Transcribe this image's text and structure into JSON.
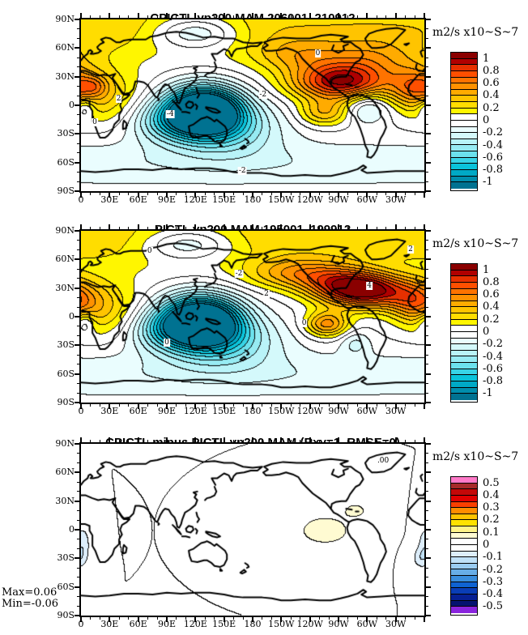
{
  "figure": {
    "kind": "NCL-style filled contour comparison figure, 3 stacked global maps",
    "background": "#ffffff"
  },
  "axes": {
    "x_labels": [
      "0",
      "30E",
      "60E",
      "90E",
      "120E",
      "150E",
      "180",
      "150W",
      "120W",
      "90W",
      "60W",
      "30W"
    ],
    "y_labels": [
      "90N",
      "60N",
      "30N",
      "0",
      "30S",
      "60S",
      "90S"
    ],
    "x_major_step_deg": 30,
    "x_minor_step_deg": 10,
    "y_major_step_deg": 30,
    "y_minor_step_deg": 10
  },
  "chart_data": [
    {
      "type": "heatmap",
      "subtype": "filled_contour_world_map",
      "title": "CPICTL vp200 MAM 206001_210912",
      "units": "m2/s x10~S~7",
      "projection": "equirectangular",
      "lon_range": [
        0,
        360
      ],
      "lat_range": [
        -90,
        90
      ],
      "levels": {
        "min": -1,
        "max": 1,
        "step": 0.1
      },
      "colorbar_tick_labels": [
        "1",
        "0.8",
        "0.6",
        "0.4",
        "0.2",
        "0",
        "-0.2",
        "-0.4",
        "-0.6",
        "-0.8",
        "-1"
      ],
      "palette": [
        "#8a0000",
        "#b00000",
        "#e63000",
        "#ff4f00",
        "#ff7300",
        "#ff9100",
        "#ffab00",
        "#ffc400",
        "#ffdd00",
        "#fff600",
        "#ffffff",
        "#ffffff",
        "#eafdfe",
        "#d4f9fb",
        "#b9f3f8",
        "#97ebf3",
        "#6ce1ed",
        "#38d4e6",
        "#0ac3da",
        "#00a9c6",
        "#008ead",
        "#007291"
      ],
      "contour_line_labels": [
        {
          "text": "2",
          "x": 11,
          "y": 46
        },
        {
          "text": "0",
          "x": 4,
          "y": 60
        },
        {
          "text": "-4",
          "x": 26,
          "y": 55
        },
        {
          "text": "-2",
          "x": 53,
          "y": 44
        },
        {
          "text": "-2",
          "x": 47,
          "y": 88
        },
        {
          "text": "0",
          "x": 69,
          "y": 20
        }
      ],
      "features": [
        {
          "lon": 180,
          "lat": 82,
          "amp": 0.28,
          "slon": 360,
          "slat": 32
        },
        {
          "lon": 120,
          "lat": 76,
          "amp": -0.42,
          "slon": 46,
          "slat": 17
        },
        {
          "lon": 0,
          "lat": -62,
          "amp": -0.18,
          "slon": 360,
          "slat": 26
        },
        {
          "lon": 128,
          "lat": -6,
          "amp": -1.55,
          "slon": 40,
          "slat": 25
        },
        {
          "lon": 152,
          "lat": -24,
          "amp": -0.45,
          "slon": 58,
          "slat": 28
        },
        {
          "lon": 85,
          "lat": -18,
          "amp": -0.3,
          "slon": 35,
          "slat": 22
        },
        {
          "lon": 272,
          "lat": 24,
          "amp": 0.95,
          "slon": 50,
          "slat": 19
        },
        {
          "lon": 305,
          "lat": 48,
          "amp": 0.35,
          "slon": 55,
          "slat": 22
        },
        {
          "lon": 225,
          "lat": 52,
          "amp": 0.3,
          "slon": 45,
          "slat": 18
        },
        {
          "lon": 20,
          "lat": 12,
          "amp": 0.32,
          "slon": 42,
          "slat": 30
        },
        {
          "lon": 14,
          "lat": 20,
          "amp": 0.22,
          "slon": 14,
          "slat": 10
        },
        {
          "lon": 350,
          "lat": 18,
          "amp": 0.45,
          "slon": 26,
          "slat": 20
        },
        {
          "lon": 255,
          "lat": -8,
          "amp": 0.38,
          "slon": 26,
          "slat": 14
        },
        {
          "lon": 300,
          "lat": -3,
          "amp": -0.28,
          "slon": 22,
          "slat": 16
        },
        {
          "lon": 4,
          "lat": -3,
          "amp": -0.3,
          "slon": 11,
          "slat": 11
        }
      ]
    },
    {
      "type": "heatmap",
      "subtype": "filled_contour_world_map",
      "title": "PICTL vp200 MAM 195001_199912",
      "units": "m2/s x10~S~7",
      "projection": "equirectangular",
      "lon_range": [
        0,
        360
      ],
      "lat_range": [
        -90,
        90
      ],
      "levels": {
        "min": -1,
        "max": 1,
        "step": 0.1
      },
      "colorbar_tick_labels": [
        "1",
        "0.8",
        "0.6",
        "0.4",
        "0.2",
        "0",
        "-0.2",
        "-0.4",
        "-0.6",
        "-0.8",
        "-1"
      ],
      "palette": [
        "#8a0000",
        "#b00000",
        "#e63000",
        "#ff4f00",
        "#ff7300",
        "#ff9100",
        "#ffab00",
        "#ffc400",
        "#ffdd00",
        "#fff600",
        "#ffffff",
        "#ffffff",
        "#eafdfe",
        "#d4f9fb",
        "#b9f3f8",
        "#97ebf3",
        "#6ce1ed",
        "#38d4e6",
        "#0ac3da",
        "#00a9c6",
        "#008ead",
        "#007291"
      ],
      "contour_line_labels": [
        {
          "text": "0",
          "x": 20,
          "y": 12
        },
        {
          "text": "-2",
          "x": 46,
          "y": 25
        },
        {
          "text": "2",
          "x": 54,
          "y": 37
        },
        {
          "text": "4",
          "x": 84,
          "y": 32
        },
        {
          "text": "0",
          "x": 65,
          "y": 54
        },
        {
          "text": "2",
          "x": 96,
          "y": 11
        },
        {
          "text": "0",
          "x": 25,
          "y": 65
        }
      ],
      "features": [
        {
          "lon": 180,
          "lat": 82,
          "amp": 0.28,
          "slon": 360,
          "slat": 32
        },
        {
          "lon": 112,
          "lat": 76,
          "amp": -0.4,
          "slon": 50,
          "slat": 17
        },
        {
          "lon": 0,
          "lat": -62,
          "amp": -0.18,
          "slon": 360,
          "slat": 26
        },
        {
          "lon": 125,
          "lat": -5,
          "amp": -1.55,
          "slon": 42,
          "slat": 26
        },
        {
          "lon": 150,
          "lat": -26,
          "amp": -0.45,
          "slon": 60,
          "slat": 28
        },
        {
          "lon": 82,
          "lat": -15,
          "amp": -0.28,
          "slon": 34,
          "slat": 22
        },
        {
          "lon": 300,
          "lat": 27,
          "amp": 1.0,
          "slon": 44,
          "slat": 18
        },
        {
          "lon": 268,
          "lat": 35,
          "amp": 0.4,
          "slon": 40,
          "slat": 18
        },
        {
          "lon": 225,
          "lat": 45,
          "amp": 0.42,
          "slon": 50,
          "slat": 16
        },
        {
          "lon": 20,
          "lat": 10,
          "amp": 0.32,
          "slon": 42,
          "slat": 30
        },
        {
          "lon": 350,
          "lat": 15,
          "amp": 0.42,
          "slon": 26,
          "slat": 20
        },
        {
          "lon": 258,
          "lat": -8,
          "amp": 0.55,
          "slon": 22,
          "slat": 13
        },
        {
          "lon": 4,
          "lat": -6,
          "amp": -0.28,
          "slon": 11,
          "slat": 12
        },
        {
          "lon": 288,
          "lat": -28,
          "amp": -0.2,
          "slon": 16,
          "slat": 13
        }
      ]
    },
    {
      "type": "heatmap",
      "subtype": "filled_contour_world_map",
      "title": "CPICTL minus PICTL vp200 MAM (Rxy=1, RMSE=0)",
      "units": "m2/s x10~S~7",
      "projection": "equirectangular",
      "lon_range": [
        0,
        360
      ],
      "lat_range": [
        -90,
        90
      ],
      "levels": {
        "min": -0.5,
        "max": 0.5,
        "step": 0.05
      },
      "colorbar_tick_labels": [
        "0.5",
        "0.4",
        "0.3",
        "0.2",
        "0.1",
        "0",
        "-0.1",
        "-0.2",
        "-0.3",
        "-0.4",
        "-0.5"
      ],
      "palette": [
        "#ff7ac8",
        "#a62a2a",
        "#c40808",
        "#e00000",
        "#fa4000",
        "#ff8c00",
        "#ffc300",
        "#ffe200",
        "#fff388",
        "#fffbd2",
        "#ffffff",
        "#ffffff",
        "#ddeefb",
        "#c0e1f7",
        "#9accf1",
        "#68aee7",
        "#3a8edd",
        "#0f63d2",
        "#0a3eb6",
        "#072093",
        "#041270",
        "#8a24de"
      ],
      "contour_line_labels": [
        {
          "text": ".00",
          "x": 88,
          "y": 10
        }
      ],
      "stats": {
        "max_label": "Max=0.06",
        "min_label": "Min=-0.06"
      },
      "features": [
        {
          "lon": 256,
          "lat": -1,
          "amp": 0.085,
          "slon": 30,
          "slat": 17
        },
        {
          "lon": 288,
          "lat": 20,
          "amp": 0.07,
          "slon": 13,
          "slat": 8
        },
        {
          "lon": 2,
          "lat": -14,
          "amp": -0.085,
          "slon": 8,
          "slat": 17
        },
        {
          "lon": 357,
          "lat": -30,
          "amp": -0.08,
          "slon": 9,
          "slat": 11
        }
      ]
    }
  ]
}
